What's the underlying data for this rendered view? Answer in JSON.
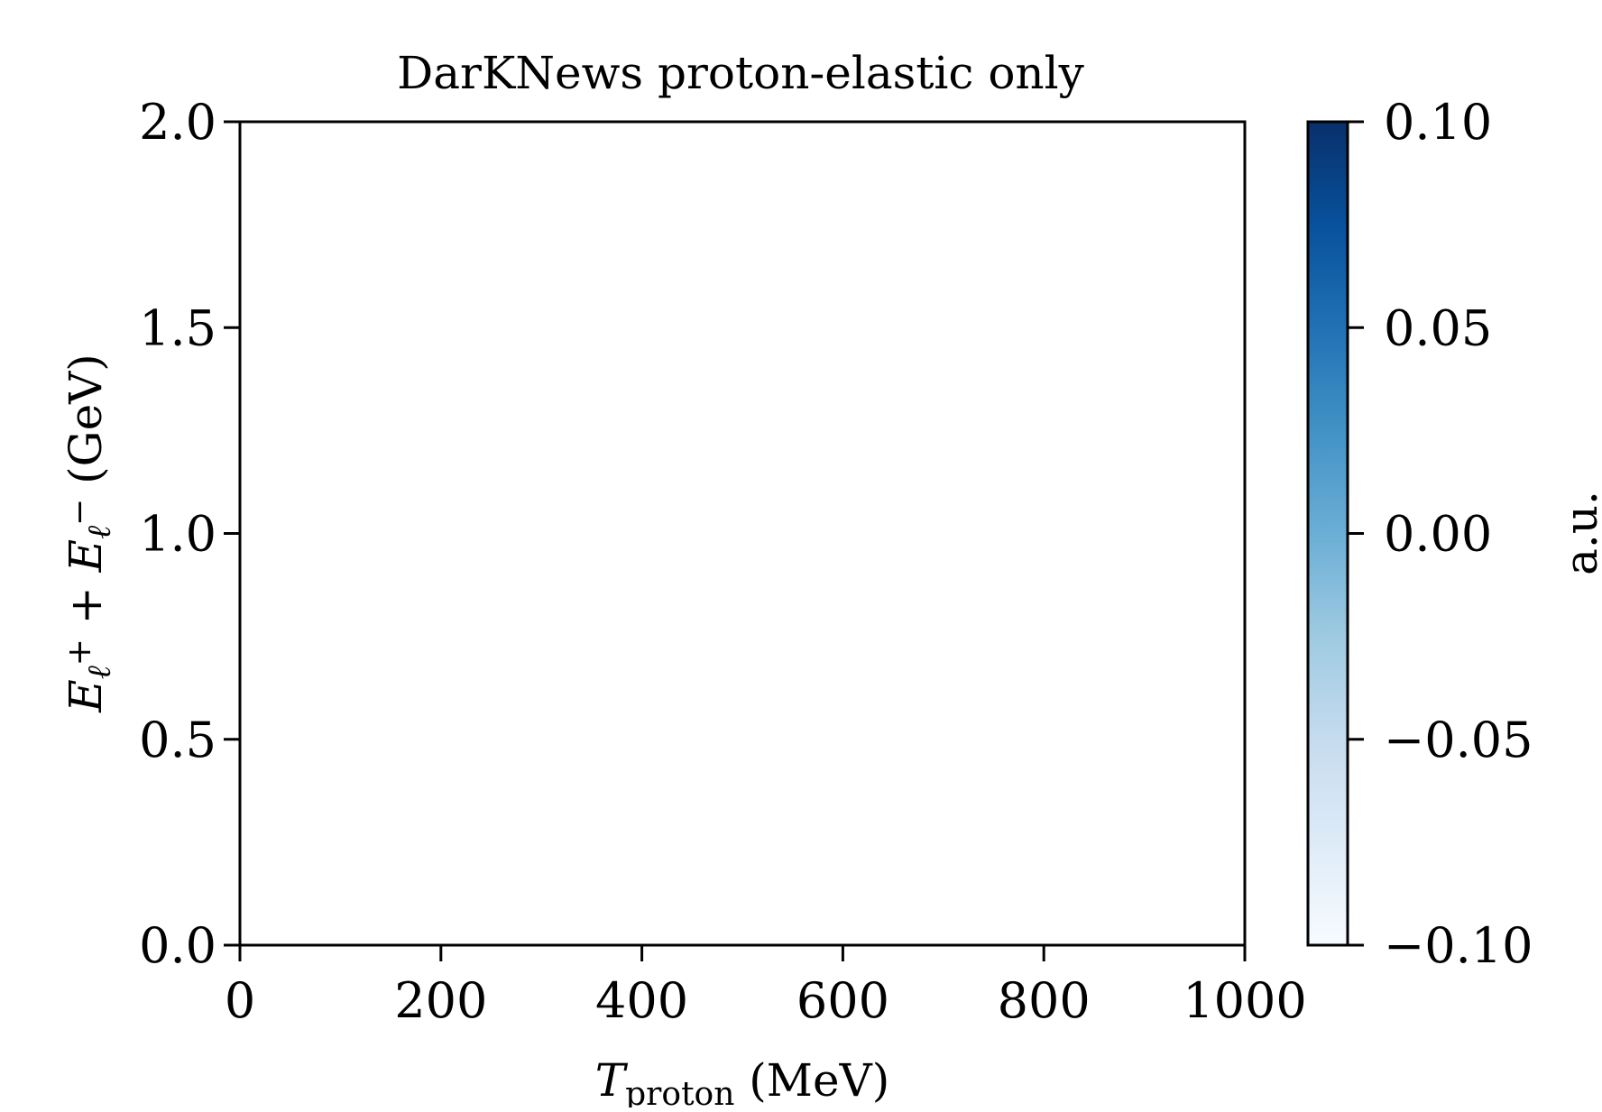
{
  "chart_data": {
    "type": "heatmap",
    "title": "DarKNews proton-elastic only",
    "xlabel": {
      "main": "T",
      "sub": "proton",
      "unit": " (MeV)"
    },
    "ylabel": {
      "part1": "E",
      "sub1": "ℓ",
      "sup1": "+",
      "mid": " + ",
      "part2": "E",
      "sub2": "ℓ",
      "sup2": "−",
      "unit": "  (GeV)"
    },
    "xlim": [
      0,
      1000
    ],
    "ylim": [
      0.0,
      2.0
    ],
    "xticks": [
      0,
      200,
      400,
      600,
      800,
      1000
    ],
    "xtick_labels": [
      "0",
      "200",
      "400",
      "600",
      "800",
      "1000"
    ],
    "yticks": [
      0.0,
      0.5,
      1.0,
      1.5,
      2.0
    ],
    "ytick_labels": [
      "0.0",
      "0.5",
      "1.0",
      "1.5",
      "2.0"
    ],
    "data": [],
    "grid": false,
    "colorbar": {
      "label": "a.u.",
      "colormap": "Blues",
      "range": [
        -0.1,
        0.1
      ],
      "ticks": [
        -0.1,
        -0.05,
        0.0,
        0.05,
        0.1
      ],
      "tick_labels": [
        "−0.10",
        "−0.05",
        "0.00",
        "0.05",
        "0.10"
      ],
      "color_low": "#f7fbff",
      "color_mid": "#6baed6",
      "color_high": "#08306b"
    }
  }
}
